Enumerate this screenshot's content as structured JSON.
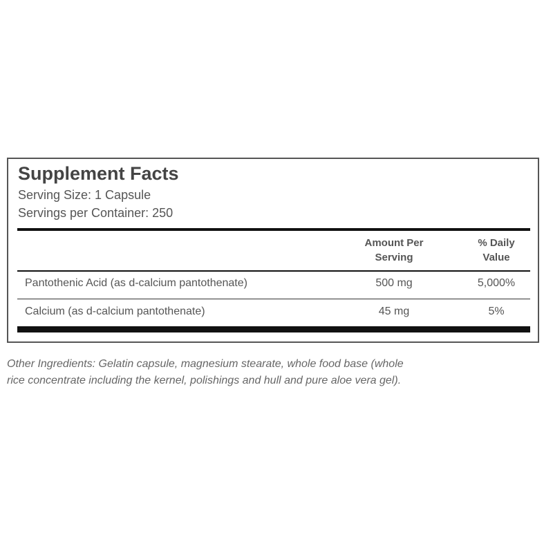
{
  "title": "Supplement Facts",
  "serving_size": "Serving Size: 1 Capsule",
  "servings_per_container": "Servings per Container: 250",
  "headers": {
    "amount": [
      "Amount Per",
      "Serving"
    ],
    "daily_value": [
      "% Daily",
      "Value"
    ]
  },
  "rows": [
    {
      "name": "Pantothenic Acid (as d-calcium pantothenate)",
      "amount": "500 mg",
      "dv": "5,000%"
    },
    {
      "name": "Calcium (as d-calcium pantothenate)",
      "amount": "45 mg",
      "dv": "5%"
    }
  ],
  "other_ingredients": [
    "Other Ingredients: Gelatin capsule, magnesium stearate, whole food base (whole",
    "rice concentrate including the kernel, polishings and hull and pure aloe vera gel)."
  ]
}
